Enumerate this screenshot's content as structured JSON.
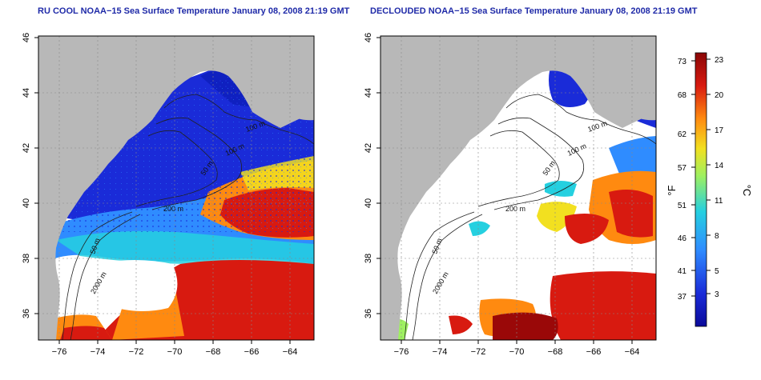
{
  "panels": [
    {
      "title": "RU COOL NOAA−15 Sea Surface Temperature January 08, 2008 21:19 GMT",
      "contour_labels": [
        "100 m",
        "100 m",
        "50 m",
        "200 m",
        "2000 m",
        "50 m"
      ]
    },
    {
      "title": "DECLOUDED NOAA−15 Sea Surface Temperature January 08, 2008 21:19 GMT",
      "contour_labels": [
        "100 m",
        "100 m",
        "50 m",
        "200 m",
        "2000 m",
        "50 m"
      ]
    }
  ],
  "axes": {
    "lon_ticks": [
      "−76",
      "−74",
      "−72",
      "−70",
      "−68",
      "−66",
      "−64"
    ],
    "lat_ticks": [
      "36",
      "38",
      "40",
      "42",
      "44",
      "46"
    ],
    "lon_range": [
      -77.1,
      -63.0
    ],
    "lat_range": [
      35.0,
      46.0
    ]
  },
  "colorbar": {
    "f_label": "°F",
    "c_label": "°C",
    "f_ticks": [
      "37",
      "41",
      "46",
      "51",
      "57",
      "62",
      "68",
      "73"
    ],
    "c_ticks": [
      "3",
      "5",
      "8",
      "11",
      "14",
      "17",
      "20",
      "23"
    ]
  },
  "colors": {
    "land": "#b8b8b8",
    "cloud": "#ffffff",
    "cold": "#1a2bd8",
    "cool": "#2f8cff",
    "mid": "#25d0e0",
    "warm": "#f2e020",
    "orange": "#ff8a10",
    "hot": "#d81a10",
    "darkhot": "#9a0808",
    "title": "#1f2aa8"
  }
}
